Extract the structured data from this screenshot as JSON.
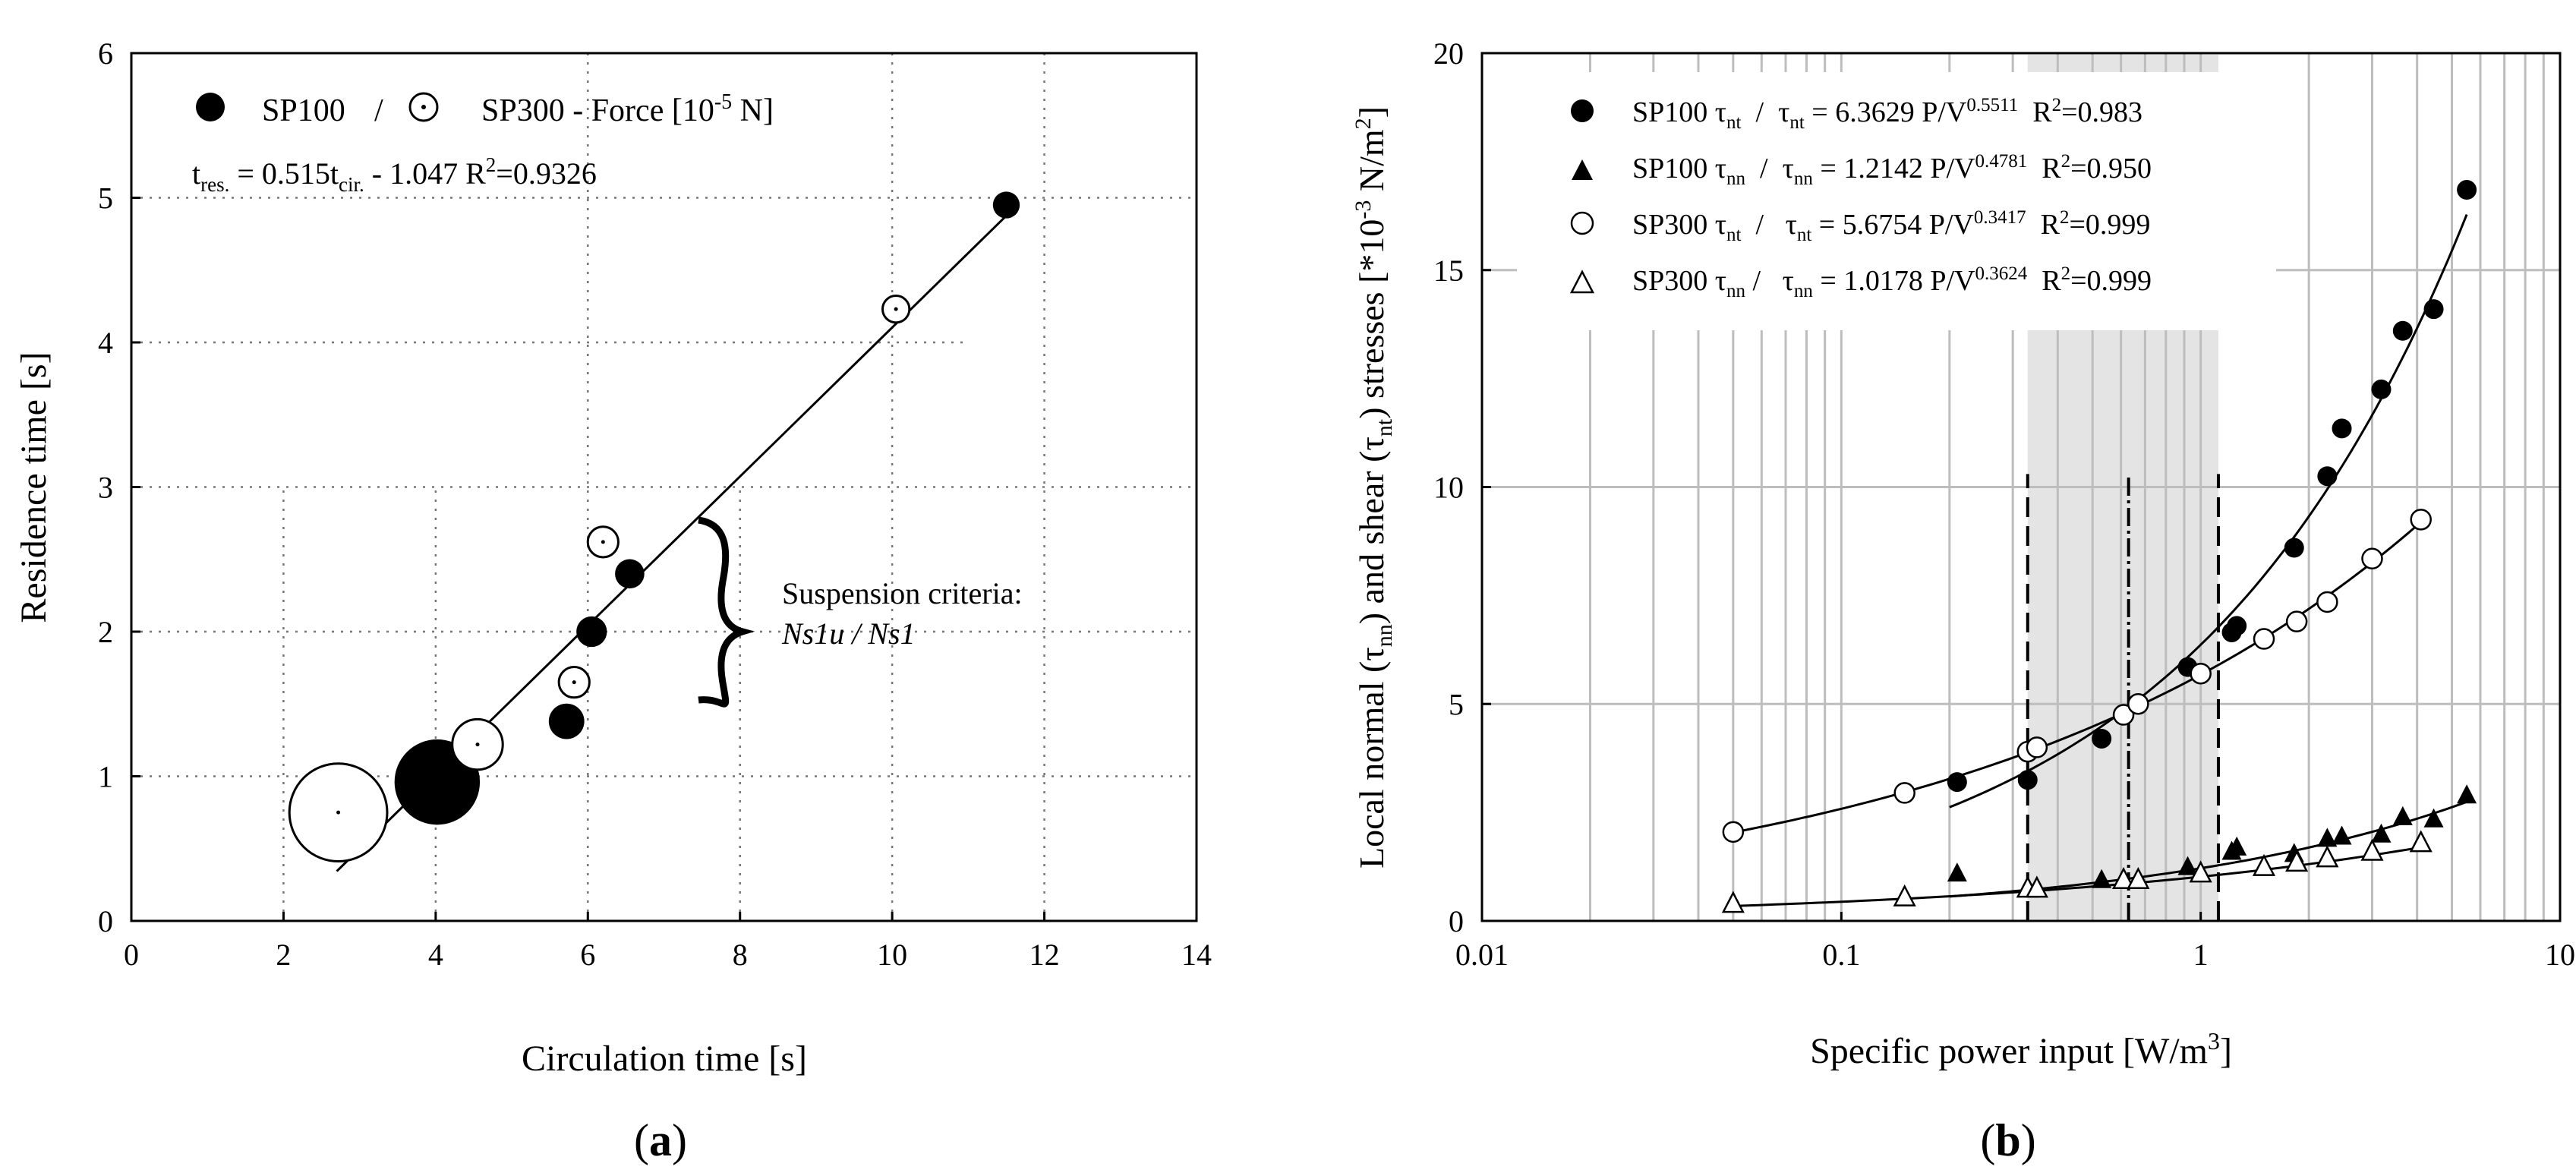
{
  "chart_data": [
    {
      "panel_label": "a",
      "type": "scatter",
      "xlabel": "Circulation time [s]",
      "ylabel": "Residence time [s]",
      "xlim": [
        0,
        14
      ],
      "ylim": [
        0,
        6
      ],
      "xticks": [
        "0",
        "2",
        "4",
        "6",
        "8",
        "10",
        "12",
        "14"
      ],
      "yticks": [
        "0",
        "1",
        "2",
        "3",
        "4",
        "5",
        "6"
      ],
      "grid": "dotted",
      "legend": {
        "items": [
          {
            "marker": "filled-circle",
            "label": "SP100"
          },
          {
            "marker": "dotted-circle",
            "label": "SP300 - Force [10",
            "sup": "-5",
            "tail": " N]"
          }
        ],
        "separator": "/"
      },
      "equation": {
        "t": "t",
        "res_sub": "res.",
        "eq": " = 0.515t",
        "cir_sub": "cir.",
        "rest": " - 1.047  R",
        "r_sup": "2",
        "r_val": "=0.9326"
      },
      "fit": {
        "slope": 0.515,
        "intercept": -1.047,
        "x_range": [
          2.7,
          11.5
        ]
      },
      "annotation": {
        "line1": "Suspension criteria:",
        "line2": "Ns1u / Ns1"
      },
      "series": [
        {
          "name": "SP100",
          "marker": "filled-circle",
          "points": [
            {
              "x": 4.02,
              "y": 0.96,
              "force": 6.0
            },
            {
              "x": 5.72,
              "y": 1.38,
              "force": 2.0
            },
            {
              "x": 6.05,
              "y": 2.0,
              "force": 1.6
            },
            {
              "x": 6.55,
              "y": 2.4,
              "force": 1.5
            },
            {
              "x": 11.5,
              "y": 4.95,
              "force": 1.3
            }
          ]
        },
        {
          "name": "SP300",
          "marker": "dotted-circle",
          "points": [
            {
              "x": 2.72,
              "y": 0.75,
              "force": 7.0
            },
            {
              "x": 4.55,
              "y": 1.22,
              "force": 3.2
            },
            {
              "x": 5.82,
              "y": 1.65,
              "force": 1.6
            },
            {
              "x": 6.2,
              "y": 2.62,
              "force": 1.6
            },
            {
              "x": 10.05,
              "y": 4.23,
              "force": 1.3
            }
          ]
        }
      ]
    },
    {
      "panel_label": "b",
      "type": "scatter",
      "xscale": "log",
      "xlabel": "Specific power input [W/m",
      "xlabel_sup": "3",
      "xlabel_tail": "]",
      "ylabel_parts": {
        "a": "Local normal (τ",
        "nn": "nn",
        "b": ") and shear (τ",
        "nt": "nt",
        "c": ") stresses [*10",
        "exp": "-3",
        "d": " N/m",
        "sq": "2",
        "e": "]"
      },
      "xlim": [
        0.01,
        10
      ],
      "ylim": [
        0,
        20
      ],
      "xticks": [
        "0.01",
        "0.1",
        "1",
        "10"
      ],
      "yticks": [
        "0",
        "5",
        "10",
        "15",
        "20"
      ],
      "grid": "solid-grey",
      "shaded_range": [
        0.33,
        1.12
      ],
      "dashed_lines": [
        0.33,
        1.12
      ],
      "center_line": 0.63,
      "legend": [
        {
          "marker": "filled-circle",
          "name": "SP100 τ",
          "sub": "nt",
          "sep": "  /  ",
          "eq": "τ",
          "eq_sub": "nt",
          "eq_mid": " = 6.3629 P/V",
          "exp": "0.5511",
          "r": "  R",
          "r_sup": "2",
          "r_val": "=0.983"
        },
        {
          "marker": "filled-triangle",
          "name": "SP100 τ",
          "sub": "nn",
          "sep": "  /  ",
          "eq": "τ",
          "eq_sub": "nn",
          "eq_mid": " = 1.2142 P/V",
          "exp": "0.4781",
          "r": "  R",
          "r_sup": "2",
          "r_val": "=0.950"
        },
        {
          "marker": "open-circle",
          "name": "SP300 τ",
          "sub": "nt",
          "sep": "  /   ",
          "eq": "τ",
          "eq_sub": "nt",
          "eq_mid": " = 5.6754 P/V",
          "exp": "0.3417",
          "r": "  R",
          "r_sup": "2",
          "r_val": "=0.999"
        },
        {
          "marker": "open-triangle",
          "name": "SP300 τ",
          "sub": "nn",
          "sep": " /   ",
          "eq": "τ",
          "eq_sub": "nn",
          "eq_mid": " = 1.0178 P/V",
          "exp": "0.3624",
          "r": "  R",
          "r_sup": "2",
          "r_val": "=0.999"
        }
      ],
      "fits": [
        {
          "name": "SP100 τnt",
          "a": 6.3629,
          "b": 0.5511,
          "x_range": [
            0.2,
            5.5
          ]
        },
        {
          "name": "SP100 τnn",
          "a": 1.2142,
          "b": 0.4781,
          "x_range": [
            0.2,
            5.5
          ]
        },
        {
          "name": "SP300 τnt",
          "a": 5.6754,
          "b": 0.3417,
          "x_range": [
            0.05,
            4.0
          ]
        },
        {
          "name": "SP300 τnn",
          "a": 1.0178,
          "b": 0.3624,
          "x_range": [
            0.05,
            4.0
          ]
        }
      ],
      "series": [
        {
          "name": "SP100 τnt",
          "marker": "filled-circle",
          "x": [
            0.21,
            0.33,
            0.53,
            0.92,
            1.22,
            1.26,
            1.82,
            2.25,
            2.47,
            3.18,
            3.65,
            4.45,
            5.5
          ],
          "y": [
            3.2,
            3.25,
            4.2,
            5.85,
            6.65,
            6.8,
            8.6,
            10.25,
            11.35,
            12.25,
            13.6,
            14.1,
            16.85
          ]
        },
        {
          "name": "SP100 τnn",
          "marker": "filled-triangle",
          "x": [
            0.21,
            0.33,
            0.53,
            0.92,
            1.22,
            1.26,
            1.82,
            2.25,
            2.47,
            3.18,
            3.65,
            4.45,
            5.5
          ],
          "y": [
            1.1,
            0.75,
            0.95,
            1.25,
            1.6,
            1.7,
            1.55,
            1.9,
            1.95,
            2.0,
            2.4,
            2.35,
            2.9
          ]
        },
        {
          "name": "SP300 τnt",
          "marker": "open-circle",
          "x": [
            0.05,
            0.15,
            0.33,
            0.35,
            0.61,
            0.67,
            1.0,
            1.5,
            1.85,
            2.25,
            3.0,
            4.1
          ],
          "y": [
            2.05,
            2.95,
            3.9,
            4.0,
            4.75,
            5.0,
            5.7,
            6.5,
            6.9,
            7.35,
            8.35,
            9.25
          ]
        },
        {
          "name": "SP300 τnn",
          "marker": "open-triangle",
          "x": [
            0.05,
            0.15,
            0.33,
            0.35,
            0.61,
            0.67,
            1.0,
            1.5,
            1.85,
            2.25,
            3.0,
            4.1
          ],
          "y": [
            0.4,
            0.55,
            0.75,
            0.75,
            0.95,
            0.95,
            1.1,
            1.25,
            1.35,
            1.45,
            1.6,
            1.8
          ]
        }
      ]
    }
  ]
}
